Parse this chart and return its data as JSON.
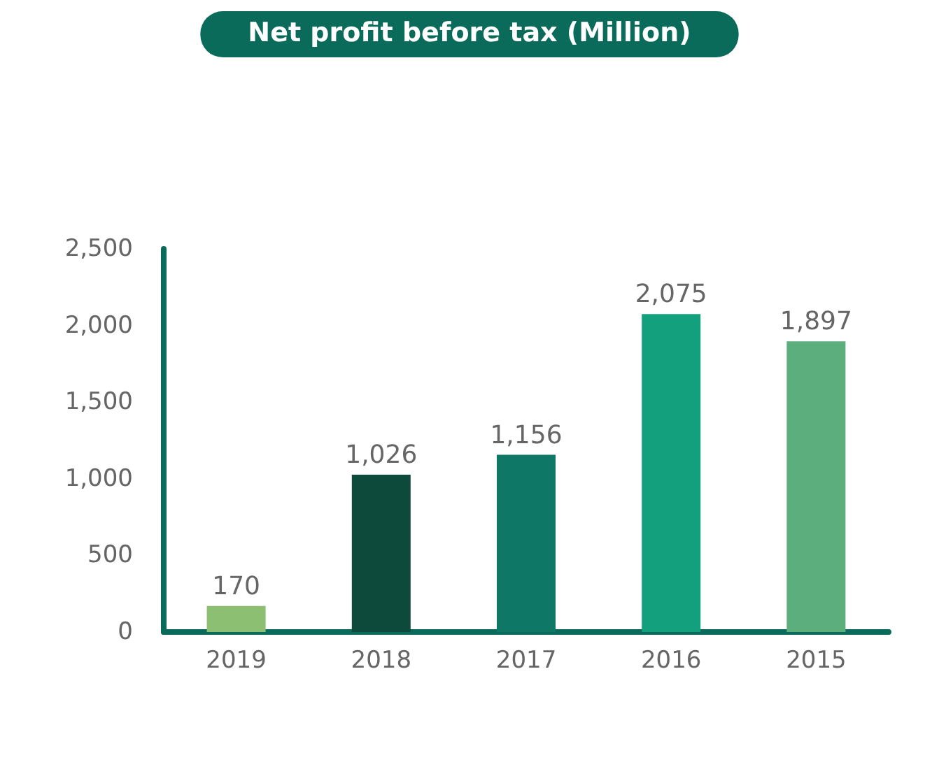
{
  "chart_data": {
    "type": "bar",
    "title": "Net profit before tax (Million)",
    "categories": [
      "2019",
      "2018",
      "2017",
      "2016",
      "2015"
    ],
    "values": [
      170,
      1026,
      1156,
      2075,
      1897
    ],
    "value_labels": [
      "170",
      "1,026",
      "1,156",
      "2,075",
      "1,897"
    ],
    "colors": [
      "#8dbf72",
      "#0d4a3c",
      "#0e7766",
      "#13a07c",
      "#5cae7c"
    ],
    "ylim": [
      0,
      2500
    ],
    "yticks": [
      0,
      500,
      {
        "value": 1000,
        "label": "1,000"
      },
      {
        "value": 1500,
        "label": "1,500"
      },
      {
        "value": 2000,
        "label": "2,000"
      },
      {
        "value": 2500,
        "label": "2,500"
      }
    ],
    "grid": false
  }
}
